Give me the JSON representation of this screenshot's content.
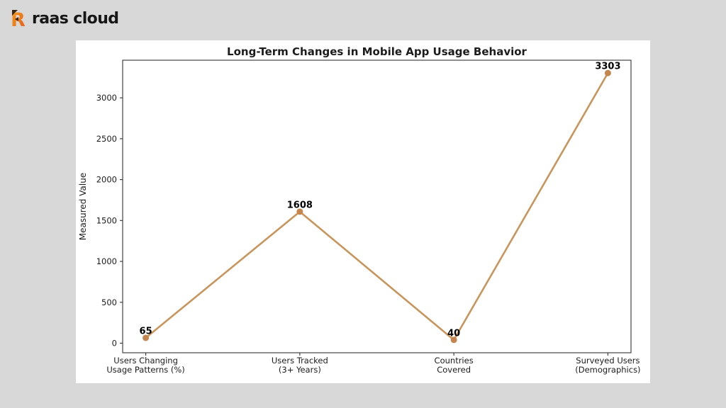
{
  "page": {
    "background_color": "#D8D8D8",
    "card_color": "#FFFFFF"
  },
  "brand": {
    "name": "raas cloud",
    "logo_letter": "R",
    "logo_color_start": "#F9A11B",
    "logo_color_end": "#E2571B",
    "logo_accent_color": "#3A2A14",
    "text_color": "#161616"
  },
  "chart_data": {
    "type": "line",
    "title": "Long-Term Changes in Mobile App Usage Behavior",
    "ylabel": "Measured Value",
    "categories": [
      [
        "Users Changing",
        "Usage Patterns (%)"
      ],
      [
        "Users Tracked",
        "(3+ Years)"
      ],
      [
        "Countries",
        "Covered"
      ],
      [
        "Surveyed Users",
        "(Demographics)"
      ]
    ],
    "values": [
      65,
      1608,
      40,
      3303
    ],
    "point_labels": [
      "65",
      "1608",
      "40",
      "3303"
    ],
    "yticks": [
      0,
      500,
      1000,
      1500,
      2000,
      2500,
      3000
    ],
    "ylim": [
      -117,
      3460
    ],
    "x_margin": 0.15,
    "grid": false,
    "legend": null,
    "line_color": "#C8955C",
    "marker_color": "#C5854E",
    "axis_color": "#333333",
    "text_color": "#1C1C1C"
  }
}
